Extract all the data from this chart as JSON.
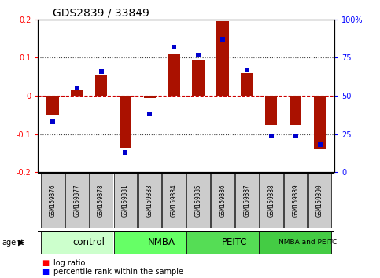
{
  "title": "GDS2839 / 33849",
  "samples": [
    "GSM159376",
    "GSM159377",
    "GSM159378",
    "GSM159381",
    "GSM159383",
    "GSM159384",
    "GSM159385",
    "GSM159386",
    "GSM159387",
    "GSM159388",
    "GSM159389",
    "GSM159390"
  ],
  "log_ratio": [
    -0.05,
    0.015,
    0.055,
    -0.135,
    -0.005,
    0.11,
    0.095,
    0.195,
    0.06,
    -0.075,
    -0.075,
    -0.14
  ],
  "percentile_rank": [
    33,
    55,
    66,
    13,
    38,
    82,
    77,
    87,
    67,
    24,
    24,
    18
  ],
  "groups": [
    {
      "label": "control",
      "start": 0,
      "end": 3,
      "color": "#ccffcc"
    },
    {
      "label": "NMBA",
      "start": 3,
      "end": 6,
      "color": "#66ff66"
    },
    {
      "label": "PEITC",
      "start": 6,
      "end": 9,
      "color": "#55dd55"
    },
    {
      "label": "NMBA and PEITC",
      "start": 9,
      "end": 12,
      "color": "#44cc44"
    }
  ],
  "bar_color": "#aa1100",
  "dot_color": "#0000cc",
  "hline_color": "#cc0000",
  "dotted_color": "#444444",
  "bg_color": "#ffffff",
  "label_box_color": "#cccccc",
  "bar_width": 0.5,
  "dot_size": 22
}
